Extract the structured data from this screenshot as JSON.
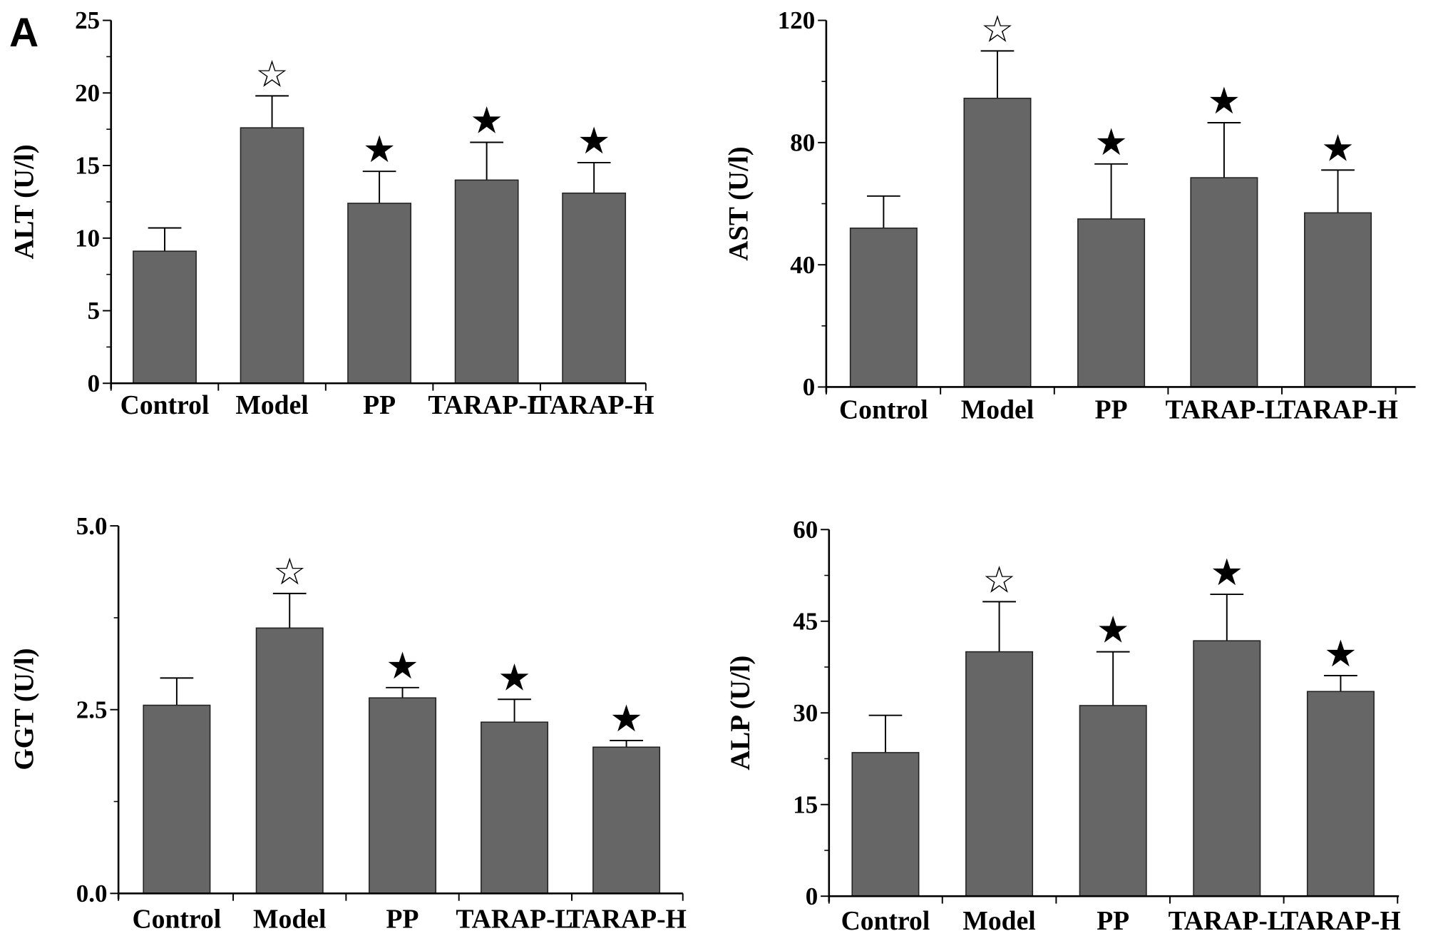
{
  "panel_label": "A",
  "colors": {
    "bar": "#666666",
    "axis": "#000000"
  },
  "chart_data": [
    {
      "type": "bar",
      "title": "",
      "xlabel": "",
      "ylabel": "ALT (U/l)",
      "ylim": [
        0,
        25
      ],
      "yticks": [
        "0",
        "5",
        "10",
        "15",
        "20",
        "25"
      ],
      "ytick_values": [
        0,
        5,
        10,
        15,
        20,
        25
      ],
      "categories": [
        "Control",
        "Model",
        "PP",
        "TARAP-L",
        "TARAP-H"
      ],
      "values": [
        9.1,
        17.6,
        12.4,
        14.0,
        13.1
      ],
      "error_upper": [
        10.7,
        19.8,
        14.6,
        16.6,
        15.2
      ],
      "markers": [
        "",
        "☆",
        "★",
        "★",
        "★"
      ]
    },
    {
      "type": "bar",
      "title": "",
      "xlabel": "",
      "ylabel": "AST (U/l)",
      "ylim": [
        0,
        120
      ],
      "yticks": [
        "0",
        "40",
        "80",
        "120"
      ],
      "ytick_values": [
        0,
        40,
        80,
        120
      ],
      "categories": [
        "Control",
        "Model",
        "PP",
        "TARAP-L",
        "TARAP-H"
      ],
      "values": [
        52,
        94.5,
        55,
        68.5,
        57
      ],
      "error_upper": [
        62.5,
        110,
        73,
        86.5,
        71
      ],
      "markers": [
        "",
        "☆",
        "★",
        "★",
        "★"
      ]
    },
    {
      "type": "bar",
      "title": "",
      "xlabel": "",
      "ylabel": "GGT (U/l)",
      "ylim": [
        0,
        5
      ],
      "yticks": [
        "0.0",
        "2.5",
        "5.0"
      ],
      "ytick_values": [
        0,
        2.5,
        5
      ],
      "categories": [
        "Control",
        "Model",
        "PP",
        "TARAP-L",
        "TARAP-H"
      ],
      "values": [
        2.56,
        3.61,
        2.66,
        2.33,
        1.99
      ],
      "error_upper": [
        2.93,
        4.08,
        2.8,
        2.64,
        2.08
      ],
      "markers": [
        "",
        "☆",
        "★",
        "★",
        "★"
      ]
    },
    {
      "type": "bar",
      "title": "",
      "xlabel": "",
      "ylabel": "ALP (U/l)",
      "ylim": [
        0,
        60
      ],
      "yticks": [
        "0",
        "15",
        "30",
        "45",
        "60"
      ],
      "ytick_values": [
        0,
        15,
        30,
        45,
        60
      ],
      "categories": [
        "Control",
        "Model",
        "PP",
        "TARAP-L",
        "TARAP-H"
      ],
      "values": [
        23.5,
        40,
        31.2,
        41.8,
        33.5
      ],
      "error_upper": [
        29.6,
        48.2,
        40,
        49.4,
        36.1
      ],
      "markers": [
        "",
        "☆",
        "★",
        "★",
        "★"
      ]
    }
  ]
}
